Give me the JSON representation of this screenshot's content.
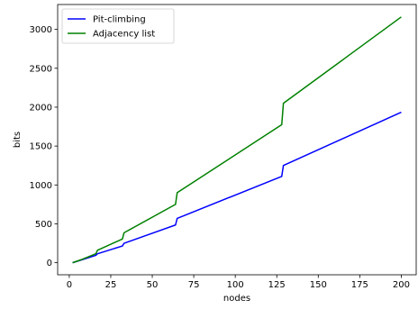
{
  "chart_data": {
    "type": "line",
    "xlabel": "nodes",
    "ylabel": "bits",
    "xlim": [
      -7,
      209
    ],
    "ylim": [
      -155,
      3320
    ],
    "xticks": [
      0,
      25,
      50,
      75,
      100,
      125,
      150,
      175,
      200
    ],
    "yticks": [
      0,
      500,
      1000,
      1500,
      2000,
      2500,
      3000
    ],
    "grid": false,
    "legend_position": "top-left",
    "series": [
      {
        "name": "Pit-climbing",
        "color": "#0000ff",
        "x": [
          2,
          8,
          16,
          17,
          32,
          33,
          64,
          65,
          128,
          129,
          200
        ],
        "y": [
          0,
          40,
          95,
          115,
          215,
          250,
          485,
          570,
          1110,
          1250,
          1935
        ]
      },
      {
        "name": "Adjacency list",
        "color": "#008000",
        "x": [
          2,
          8,
          16,
          17,
          32,
          33,
          64,
          65,
          128,
          129,
          200
        ],
        "y": [
          0,
          45,
          115,
          160,
          305,
          385,
          750,
          900,
          1775,
          2050,
          3160
        ]
      }
    ]
  }
}
